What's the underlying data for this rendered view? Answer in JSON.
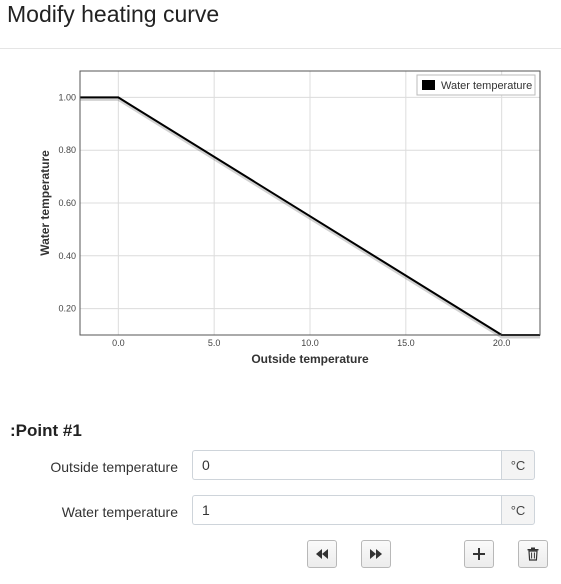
{
  "page": {
    "title": "Modify heating curve"
  },
  "chart_data": {
    "type": "line",
    "xlabel": "Outside temperature",
    "ylabel": "Water temperature",
    "xlim": [
      -2,
      22
    ],
    "ylim": [
      0.1,
      1.1
    ],
    "x_ticks": [
      0,
      5,
      10,
      15,
      20
    ],
    "x_tick_labels": [
      "0.0",
      "5.0",
      "10.0",
      "15.0",
      "20.0"
    ],
    "y_ticks": [
      0.2,
      0.4,
      0.6,
      0.8,
      1.0
    ],
    "y_tick_labels": [
      "0.20",
      "0.40",
      "0.60",
      "0.80",
      "1.00"
    ],
    "grid": true,
    "legend_position": "top-right",
    "series": [
      {
        "name": "Water temperature",
        "color": "#000000",
        "x": [
          -2,
          0,
          20,
          22
        ],
        "y": [
          1.0,
          1.0,
          0.1,
          0.1
        ]
      }
    ]
  },
  "point_editor": {
    "title": ":Point #1",
    "outside_label": "Outside temperature",
    "outside_value": "0",
    "outside_unit": "°C",
    "water_label": "Water temperature",
    "water_value": "1",
    "water_unit": "°C"
  },
  "toolbar": {
    "icons": {
      "prev": "rewind-icon",
      "next": "fast-forward-icon",
      "add": "plus-icon",
      "delete": "trash-icon"
    }
  }
}
